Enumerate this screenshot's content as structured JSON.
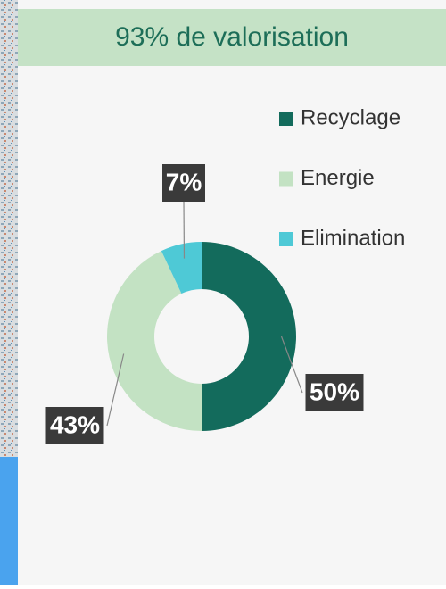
{
  "chart_data": {
    "type": "donut",
    "title": "93% de valorisation",
    "categories": [
      "Recyclage",
      "Energie",
      "Elimination"
    ],
    "values": [
      50,
      43,
      7
    ],
    "value_labels": [
      "50%",
      "43%",
      "7%"
    ],
    "colors": [
      "#136b5c",
      "#c3e2c3",
      "#4ec9d6"
    ]
  }
}
